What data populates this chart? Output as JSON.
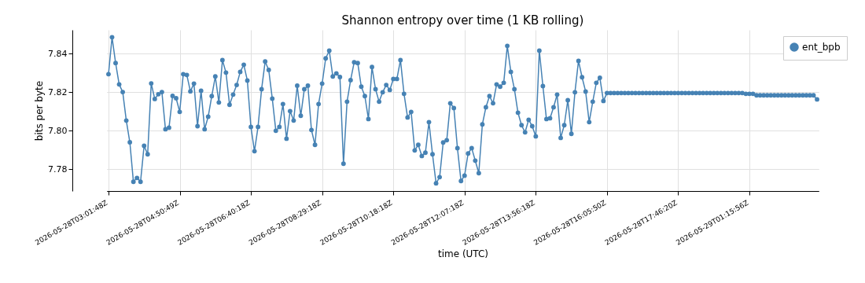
{
  "chart_data": {
    "type": "line",
    "title": "Shannon entropy over time (1 KB rolling)",
    "xlabel": "time (UTC)",
    "ylabel": "bits per byte",
    "categories": [
      "2026-05-28T03:01:48Z",
      null,
      null,
      null,
      null,
      null,
      null,
      null,
      null,
      null,
      null,
      null,
      null,
      null,
      null,
      null,
      null,
      null,
      null,
      null,
      "2026-05-28T04:50:49Z",
      null,
      null,
      null,
      null,
      null,
      null,
      null,
      null,
      null,
      null,
      null,
      null,
      null,
      null,
      null,
      null,
      null,
      null,
      null,
      "2026-05-28T06:40:18Z",
      null,
      null,
      null,
      null,
      null,
      null,
      null,
      null,
      null,
      null,
      null,
      null,
      null,
      null,
      null,
      null,
      null,
      null,
      null,
      "2026-05-28T08:29:18Z",
      null,
      null,
      null,
      null,
      null,
      null,
      null,
      null,
      null,
      null,
      null,
      null,
      null,
      null,
      null,
      null,
      null,
      null,
      null,
      "2026-05-28T10:18:18Z",
      null,
      null,
      null,
      null,
      null,
      null,
      null,
      null,
      null,
      null,
      null,
      null,
      null,
      null,
      null,
      null,
      null,
      null,
      null,
      "2026-05-28T12:07:18Z",
      null,
      null,
      null,
      null,
      null,
      null,
      null,
      null,
      null,
      null,
      null,
      null,
      null,
      null,
      null,
      null,
      null,
      null,
      null,
      "2026-05-28T13:56:18Z",
      null,
      null,
      null,
      null,
      null,
      null,
      null,
      null,
      null,
      null,
      null,
      null,
      null,
      null,
      null,
      null,
      null,
      null,
      null,
      "2026-05-28T16:05:50Z",
      null,
      null,
      null,
      null,
      null,
      null,
      null,
      null,
      null,
      null,
      null,
      null,
      null,
      null,
      null,
      null,
      null,
      null,
      null,
      "2026-05-28T17:46:20Z",
      null,
      null,
      null,
      null,
      null,
      null,
      null,
      null,
      null,
      null,
      null,
      null,
      null,
      null,
      null,
      null,
      null,
      null,
      null,
      "2026-05-29T01:15:56Z",
      null,
      null,
      null,
      null,
      null,
      null,
      null,
      null,
      null,
      null,
      null,
      null,
      null,
      null,
      null,
      null,
      null,
      null,
      null
    ],
    "series": [
      {
        "name": "ent_bpb",
        "color": "#4682b4",
        "values": [
          7.8294,
          7.8486,
          7.8352,
          7.8241,
          7.8201,
          7.8053,
          7.794,
          7.7735,
          7.7755,
          7.7735,
          7.7922,
          7.7878,
          7.8246,
          7.8165,
          7.819,
          7.8201,
          7.8008,
          7.8016,
          7.8181,
          7.8169,
          7.8098,
          7.8294,
          7.829,
          7.8205,
          7.8245,
          7.8024,
          7.8208,
          7.8008,
          7.8073,
          7.818,
          7.8282,
          7.8147,
          7.8367,
          7.8302,
          7.8135,
          7.8188,
          7.8238,
          7.8306,
          7.8343,
          7.8261,
          7.802,
          7.7894,
          7.802,
          7.8216,
          7.836,
          7.8316,
          7.8167,
          7.8,
          7.802,
          7.8139,
          7.7959,
          7.8102,
          7.8053,
          7.8234,
          7.8078,
          7.8216,
          7.8234,
          7.8004,
          7.7927,
          7.8139,
          7.8245,
          7.8376,
          7.8416,
          7.8282,
          7.8298,
          7.8279,
          7.7829,
          7.8151,
          7.8263,
          7.8356,
          7.8352,
          7.8229,
          7.818,
          7.8061,
          7.8331,
          7.8216,
          7.8151,
          7.82,
          7.8238,
          7.8212,
          7.8269,
          7.8269,
          7.8367,
          7.8192,
          7.8069,
          7.8098,
          7.7898,
          7.7927,
          7.7869,
          7.7886,
          7.8045,
          7.7878,
          7.7727,
          7.7759,
          7.7939,
          7.7951,
          7.8143,
          7.8118,
          7.791,
          7.7739,
          7.7767,
          7.7882,
          7.791,
          7.7845,
          7.778,
          7.8033,
          7.8122,
          7.818,
          7.8143,
          7.8241,
          7.8229,
          7.8249,
          7.8441,
          7.8306,
          7.8216,
          7.8094,
          7.8029,
          7.7992,
          7.8057,
          7.8024,
          7.7971,
          7.8416,
          7.8232,
          7.8061,
          7.8065,
          7.8122,
          7.8188,
          7.7963,
          7.8029,
          7.8159,
          7.7984,
          7.82,
          7.8363,
          7.8278,
          7.8204,
          7.8045,
          7.8151,
          7.8249,
          7.8275,
          7.8155,
          7.8196,
          7.8196,
          7.8196,
          7.8196,
          7.8196,
          7.8196,
          7.8196,
          7.8196,
          7.8196,
          7.8196,
          7.8196,
          7.8196,
          7.8196,
          7.8196,
          7.8196,
          7.8196,
          7.8196,
          7.8196,
          7.8196,
          7.8196,
          7.8196,
          7.8196,
          7.8196,
          7.8196,
          7.8196,
          7.8196,
          7.8196,
          7.8196,
          7.8196,
          7.8196,
          7.8196,
          7.8196,
          7.8196,
          7.8196,
          7.8196,
          7.8196,
          7.8196,
          7.8196,
          7.8196,
          7.8192,
          7.8192,
          7.8192,
          7.8184,
          7.8184,
          7.8184,
          7.8184,
          7.8184,
          7.8184,
          7.8184,
          7.8184,
          7.8184,
          7.8184,
          7.8184,
          7.8184,
          7.8184,
          7.8184,
          7.8184,
          7.8184,
          7.8184,
          7.8163
        ]
      }
    ],
    "ylim": [
      7.7687,
      7.8524
    ],
    "yticks": [
      7.78,
      {
        "value": 7.8,
        "label": "7.80"
      },
      7.82,
      7.84
    ],
    "grid": true,
    "legend": "top right",
    "marker": "circle",
    "line_style": "solid"
  }
}
